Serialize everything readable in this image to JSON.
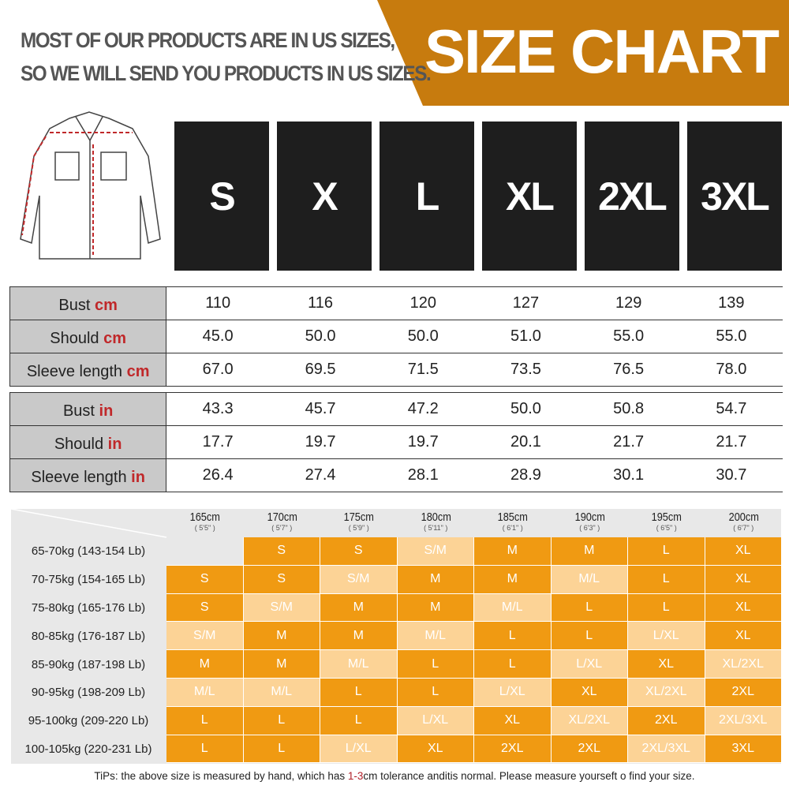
{
  "header": {
    "notice_line1": "MOST OF OUR PRODUCTS ARE IN US SIZES,",
    "notice_line2": "SO WE WILL SEND YOU PRODUCTS IN US SIZES.",
    "title": "SIZE CHART",
    "banner_color": "#C77B0E"
  },
  "sizes": [
    "S",
    "X",
    "L",
    "XL",
    "2XL",
    "3XL"
  ],
  "cm_table": [
    {
      "label": "Bust ",
      "unit": "cm",
      "values": [
        "110",
        "116",
        "120",
        "127",
        "129",
        "139"
      ]
    },
    {
      "label": "Should ",
      "unit": "cm",
      "values": [
        "45.0",
        "50.0",
        "50.0",
        "51.0",
        "55.0",
        "55.0"
      ]
    },
    {
      "label": "Sleeve length ",
      "unit": "cm",
      "values": [
        "67.0",
        "69.5",
        "71.5",
        "73.5",
        "76.5",
        "78.0"
      ]
    }
  ],
  "in_table": [
    {
      "label": "Bust ",
      "unit": "in",
      "values": [
        "43.3",
        "45.7",
        "47.2",
        "50.0",
        "50.8",
        "54.7"
      ]
    },
    {
      "label": "Should ",
      "unit": "in",
      "values": [
        "17.7",
        "19.7",
        "19.7",
        "20.1",
        "21.7",
        "21.7"
      ]
    },
    {
      "label": "Sleeve length ",
      "unit": "in",
      "values": [
        "26.4",
        "27.4",
        "28.1",
        "28.9",
        "30.1",
        "30.7"
      ]
    }
  ],
  "fit_grid": {
    "colors": {
      "single": "#F09A12",
      "combo": "#FCD396"
    },
    "heights": [
      {
        "cm": "165cm",
        "ft": "( 5'5\" )"
      },
      {
        "cm": "170cm",
        "ft": "( 5'7\" )"
      },
      {
        "cm": "175cm",
        "ft": "( 5'9\" )"
      },
      {
        "cm": "180cm",
        "ft": "( 5'11\" )"
      },
      {
        "cm": "185cm",
        "ft": "( 6'1\" )"
      },
      {
        "cm": "190cm",
        "ft": "( 6'3\" )"
      },
      {
        "cm": "195cm",
        "ft": "( 6'5\" )"
      },
      {
        "cm": "200cm",
        "ft": "( 6'7\" )"
      }
    ],
    "rows": [
      {
        "weight": "65-70kg (143-154 Lb)",
        "sizes": [
          "",
          "S",
          "S",
          "S/M",
          "M",
          "M",
          "L",
          "XL"
        ]
      },
      {
        "weight": "70-75kg (154-165 Lb)",
        "sizes": [
          "S",
          "S",
          "S/M",
          "M",
          "M",
          "M/L",
          "L",
          "XL"
        ]
      },
      {
        "weight": "75-80kg (165-176 Lb)",
        "sizes": [
          "S",
          "S/M",
          "M",
          "M",
          "M/L",
          "L",
          "L",
          "XL"
        ]
      },
      {
        "weight": "80-85kg (176-187 Lb)",
        "sizes": [
          "S/M",
          "M",
          "M",
          "M/L",
          "L",
          "L",
          "L/XL",
          "XL"
        ]
      },
      {
        "weight": "85-90kg (187-198 Lb)",
        "sizes": [
          "M",
          "M",
          "M/L",
          "L",
          "L",
          "L/XL",
          "XL",
          "XL/2XL"
        ]
      },
      {
        "weight": "90-95kg (198-209 Lb)",
        "sizes": [
          "M/L",
          "M/L",
          "L",
          "L",
          "L/XL",
          "XL",
          "XL/2XL",
          "2XL"
        ]
      },
      {
        "weight": "95-100kg (209-220 Lb)",
        "sizes": [
          "L",
          "L",
          "L",
          "L/XL",
          "XL",
          "XL/2XL",
          "2XL",
          "2XL/3XL"
        ]
      },
      {
        "weight": "100-105kg (220-231 Lb)",
        "sizes": [
          "L",
          "L",
          "L/XL",
          "XL",
          "2XL",
          "2XL",
          "2XL/3XL",
          "3XL"
        ]
      }
    ]
  },
  "tip": {
    "before": "TiPs: the above size is measured by hand, which has ",
    "highlight": "1-3",
    "after": "cm tolerance anditis normal. Please measure yourseft o find your size."
  }
}
